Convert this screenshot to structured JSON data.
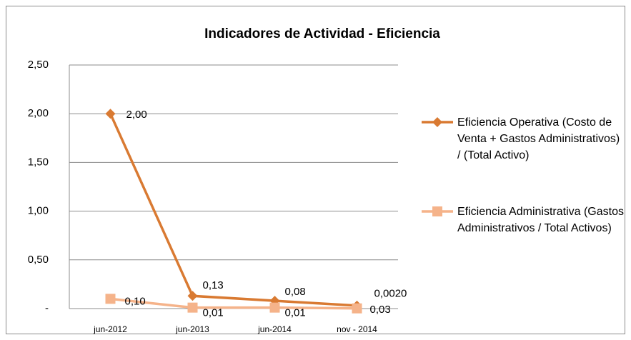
{
  "chart_data": {
    "type": "line",
    "title": "Indicadores de Actividad - Eficiencia",
    "categories": [
      "jun-2012",
      "jun-2013",
      "jun-2014",
      "nov - 2014"
    ],
    "series": [
      {
        "name": "Eficiencia Operativa (Costo de Venta + Gastos Administrativos) / (Total Activo)",
        "color": "#d97a32",
        "marker": "diamond",
        "values": [
          2.0,
          0.13,
          0.08,
          0.03
        ],
        "value_labels": [
          "2,00",
          "0,13",
          "0,08",
          "0,03"
        ]
      },
      {
        "name": "Eficiencia Administrativa (Gastos Administrativos / Total Activos)",
        "color": "#f5b38a",
        "marker": "square",
        "values": [
          0.1,
          0.01,
          0.01,
          0.002
        ],
        "value_labels": [
          "0,10",
          "0,01",
          "0,01",
          "0,0020"
        ]
      }
    ],
    "ylim": [
      0,
      2.5
    ],
    "yticks": [
      {
        "value": 0,
        "label": "-"
      },
      {
        "value": 0.5,
        "label": "0,50"
      },
      {
        "value": 1.0,
        "label": "1,00"
      },
      {
        "value": 1.5,
        "label": "1,50"
      },
      {
        "value": 2.0,
        "label": "2,00"
      },
      {
        "value": 2.5,
        "label": "2,50"
      }
    ],
    "grid": true,
    "legend": "right"
  }
}
